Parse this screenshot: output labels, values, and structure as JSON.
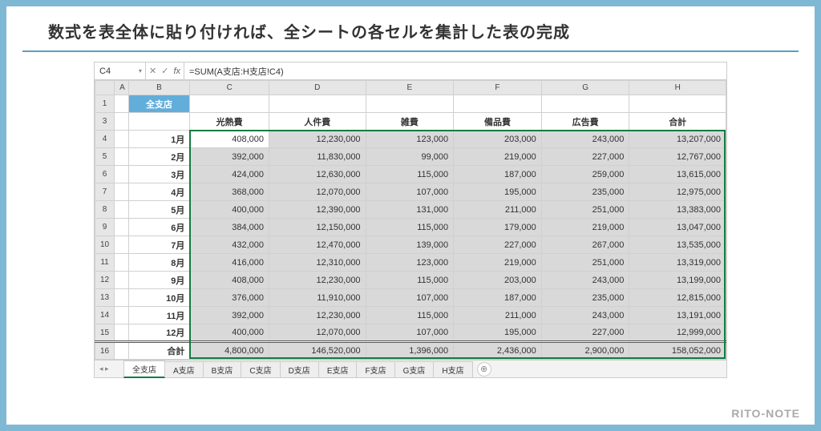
{
  "page": {
    "title": "数式を表全体に貼り付ければ、全シートの各セルを集計した表の完成",
    "watermark": "RITO-NOTE"
  },
  "excel": {
    "name_box": "C4",
    "formula": "=SUM(A支店:H支店!C4)",
    "col_headers": [
      "A",
      "B",
      "C",
      "D",
      "E",
      "F",
      "G",
      "H"
    ],
    "row_headers": [
      "1",
      "3",
      "4",
      "5",
      "6",
      "7",
      "8",
      "9",
      "10",
      "11",
      "12",
      "13",
      "14",
      "15",
      "16"
    ],
    "all_branches_label": "全支店",
    "category_headers": [
      "光熱費",
      "人件費",
      "雑費",
      "備品費",
      "広告費",
      "合計"
    ],
    "months": [
      "1月",
      "2月",
      "3月",
      "4月",
      "5月",
      "6月",
      "7月",
      "8月",
      "9月",
      "10月",
      "11月",
      "12月",
      "合計"
    ],
    "data": [
      [
        "408,000",
        "12,230,000",
        "123,000",
        "203,000",
        "243,000",
        "13,207,000"
      ],
      [
        "392,000",
        "11,830,000",
        "99,000",
        "219,000",
        "227,000",
        "12,767,000"
      ],
      [
        "424,000",
        "12,630,000",
        "115,000",
        "187,000",
        "259,000",
        "13,615,000"
      ],
      [
        "368,000",
        "12,070,000",
        "107,000",
        "195,000",
        "235,000",
        "12,975,000"
      ],
      [
        "400,000",
        "12,390,000",
        "131,000",
        "211,000",
        "251,000",
        "13,383,000"
      ],
      [
        "384,000",
        "12,150,000",
        "115,000",
        "179,000",
        "219,000",
        "13,047,000"
      ],
      [
        "432,000",
        "12,470,000",
        "139,000",
        "227,000",
        "267,000",
        "13,535,000"
      ],
      [
        "416,000",
        "12,310,000",
        "123,000",
        "219,000",
        "251,000",
        "13,319,000"
      ],
      [
        "408,000",
        "12,230,000",
        "115,000",
        "203,000",
        "243,000",
        "13,199,000"
      ],
      [
        "376,000",
        "11,910,000",
        "107,000",
        "187,000",
        "235,000",
        "12,815,000"
      ],
      [
        "392,000",
        "12,230,000",
        "115,000",
        "211,000",
        "243,000",
        "13,191,000"
      ],
      [
        "400,000",
        "12,070,000",
        "107,000",
        "195,000",
        "227,000",
        "12,999,000"
      ],
      [
        "4,800,000",
        "146,520,000",
        "1,396,000",
        "2,436,000",
        "2,900,000",
        "158,052,000"
      ]
    ],
    "tabs": [
      "全支店",
      "A支店",
      "B支店",
      "C支店",
      "D支店",
      "E支店",
      "F支店",
      "G支店",
      "H支店"
    ],
    "active_tab": 0,
    "colors": {
      "frame_border": "#7fb8d4",
      "header_bg": "#e6e6e6",
      "selection_fill": "#d9d9d9",
      "selection_border": "#107c41",
      "all_branch_bg": "#63adda",
      "all_branch_fg": "#ffffff",
      "grid_line": "#d0d0d0"
    }
  }
}
